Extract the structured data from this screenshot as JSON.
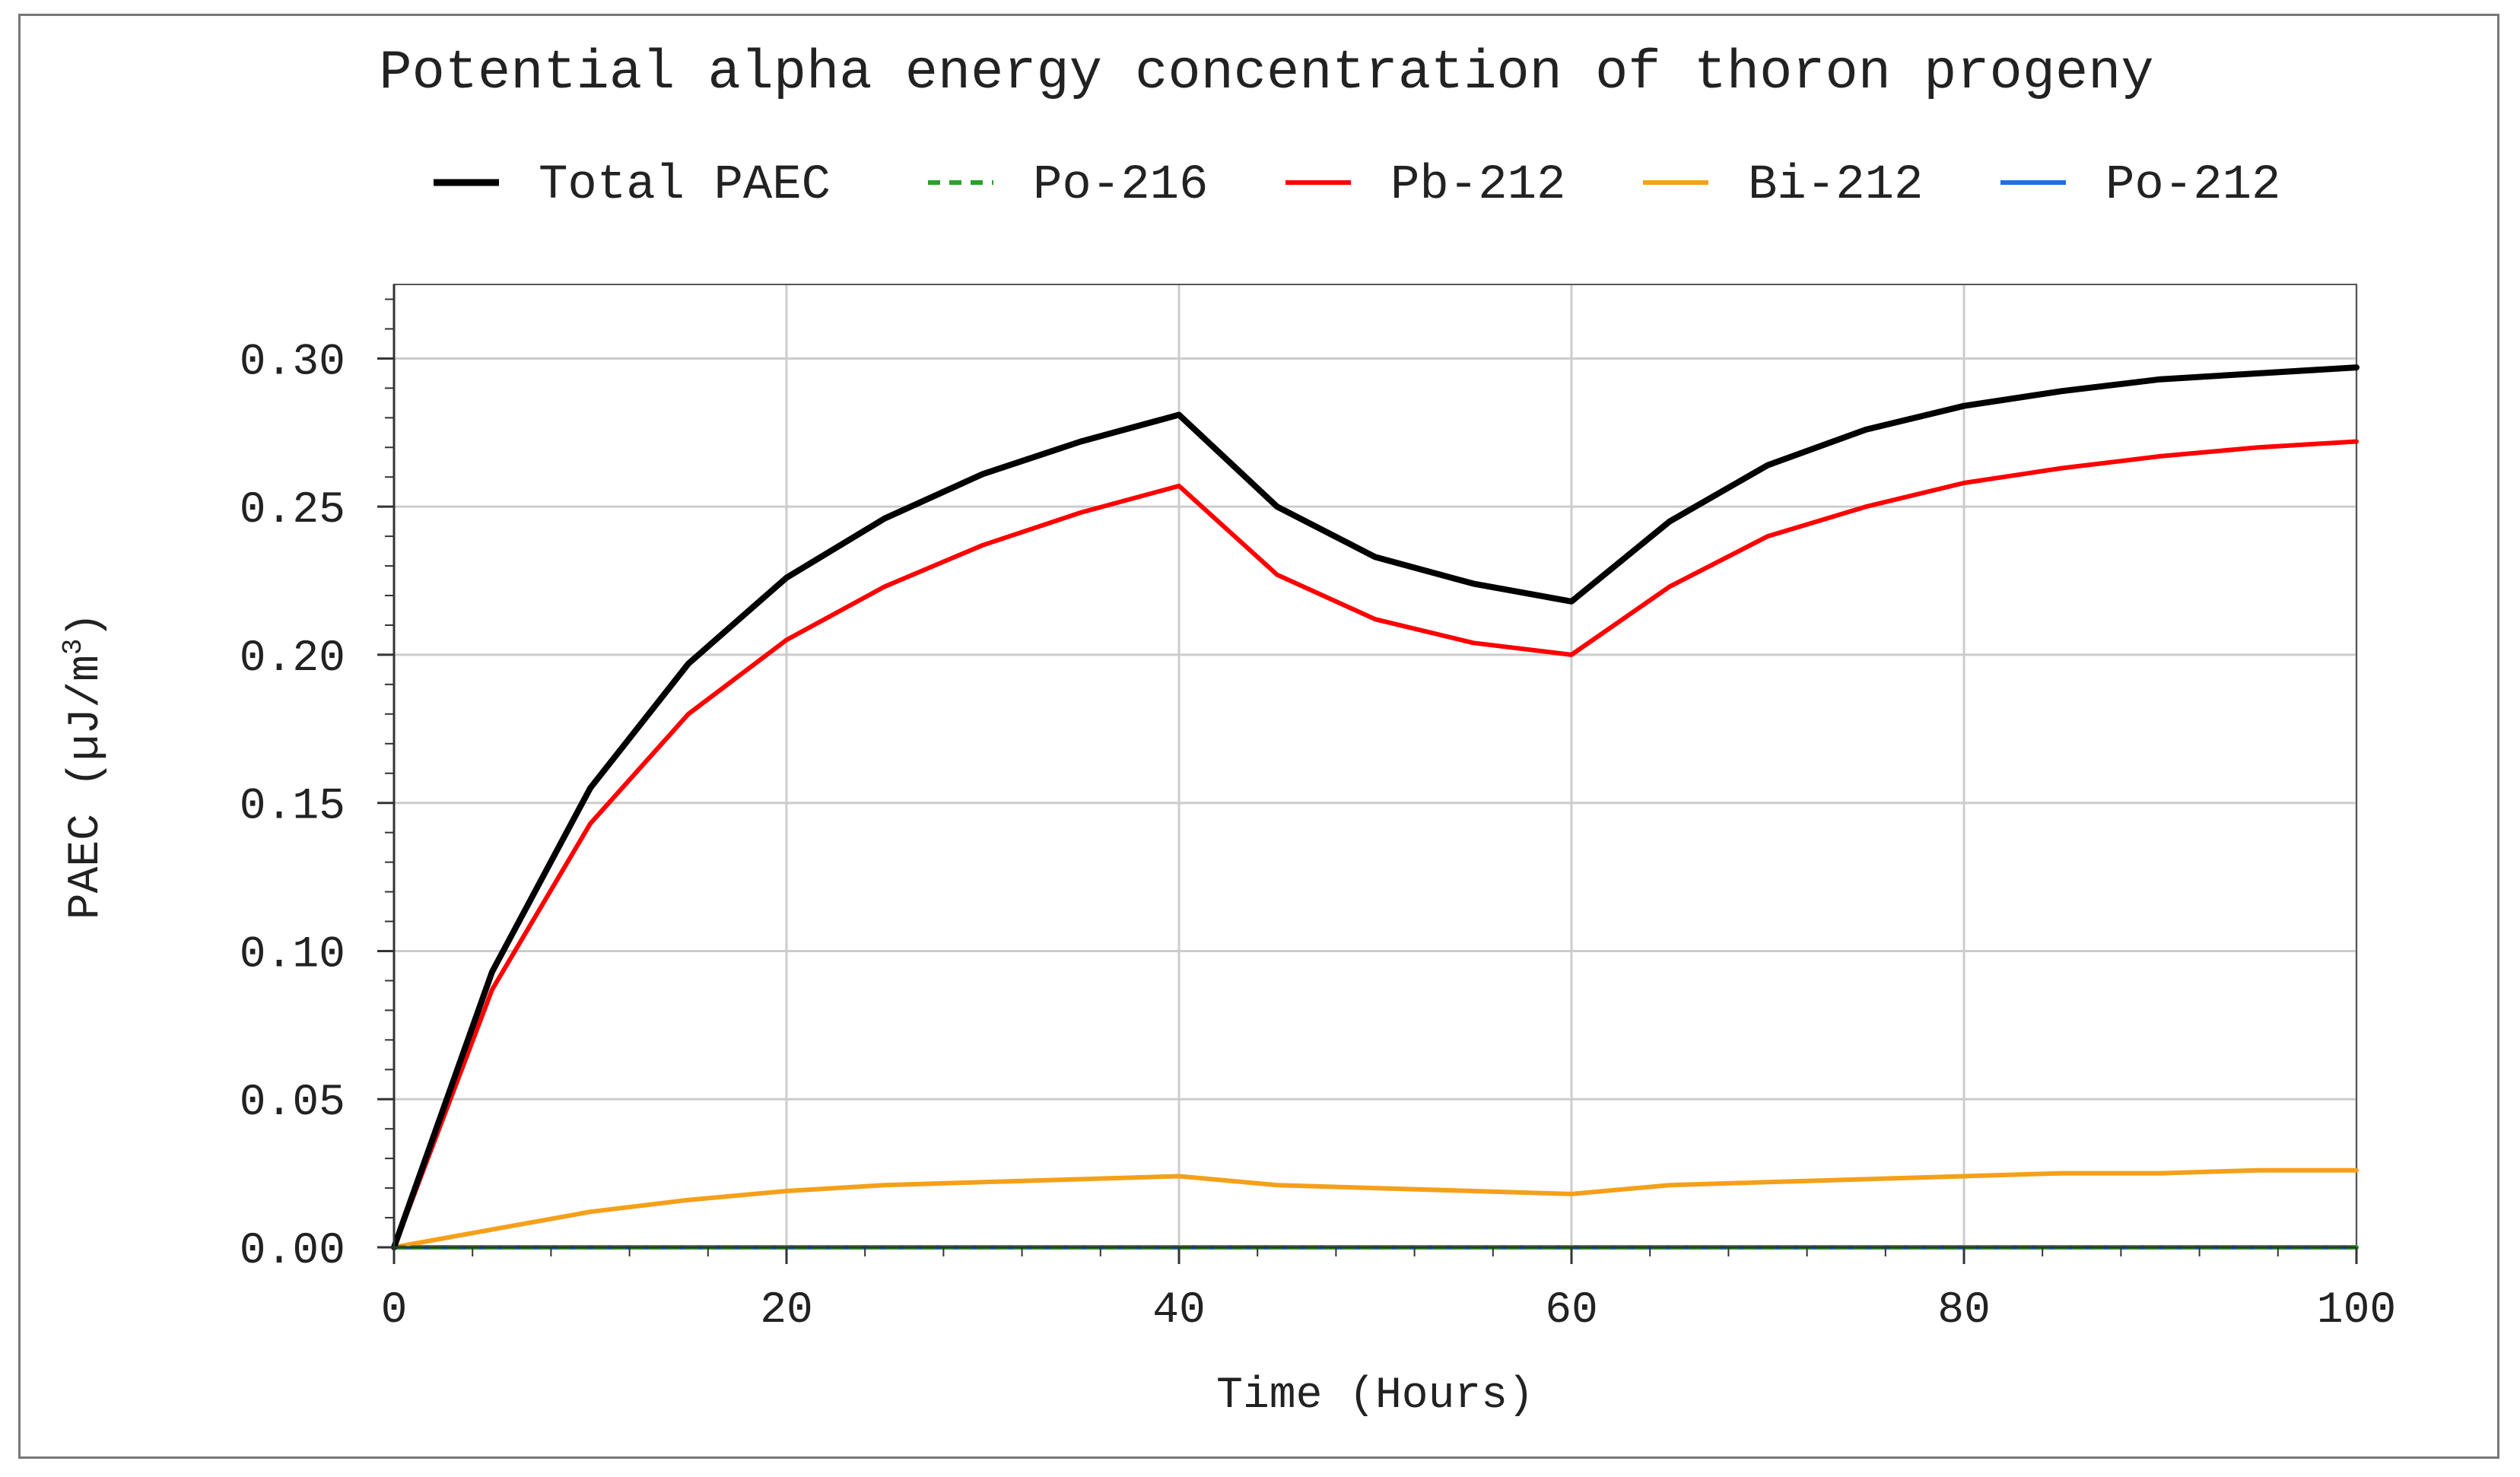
{
  "chart_data": {
    "type": "line",
    "title": "Potential alpha energy concentration of thoron progeny",
    "xlabel": "Time (Hours)",
    "ylabel": {
      "prefix": "PAEC (µJ/m",
      "sup": "3",
      "suffix": ")"
    },
    "xlim": [
      0,
      100
    ],
    "ylim": [
      0,
      0.325
    ],
    "xticks": [
      0,
      20,
      40,
      60,
      80,
      100
    ],
    "xtick_labels": [
      "0",
      "20",
      "40",
      "60",
      "80",
      "100"
    ],
    "yticks": [
      0,
      0.05,
      0.1,
      0.15,
      0.2,
      0.25,
      0.3
    ],
    "ytick_labels": [
      "0.00",
      "0.05",
      "0.10",
      "0.15",
      "0.20",
      "0.25",
      "0.30"
    ],
    "grid": true,
    "legend_position": "top",
    "x": [
      0,
      5,
      10,
      15,
      20,
      25,
      30,
      35,
      40,
      45,
      50,
      55,
      60,
      65,
      70,
      75,
      80,
      85,
      90,
      95,
      100
    ],
    "series": [
      {
        "name": "Total PAEC",
        "color": "#000000",
        "dash": "solid",
        "values": [
          0.0,
          0.093,
          0.155,
          0.197,
          0.226,
          0.246,
          0.261,
          0.272,
          0.281,
          0.25,
          0.233,
          0.224,
          0.218,
          0.245,
          0.264,
          0.276,
          0.284,
          0.289,
          0.293,
          0.295,
          0.297
        ]
      },
      {
        "name": "Po-216",
        "color": "#2ca02c",
        "dash": "dashed",
        "values": [
          0,
          0,
          0,
          0,
          0,
          0,
          0,
          0,
          0,
          0,
          0,
          0,
          0,
          0,
          0,
          0,
          0,
          0,
          0,
          0,
          0
        ]
      },
      {
        "name": "Pb-212",
        "color": "#ff0000",
        "dash": "solid",
        "values": [
          0.0,
          0.087,
          0.143,
          0.18,
          0.205,
          0.223,
          0.237,
          0.248,
          0.257,
          0.227,
          0.212,
          0.204,
          0.2,
          0.223,
          0.24,
          0.25,
          0.258,
          0.263,
          0.267,
          0.27,
          0.272
        ]
      },
      {
        "name": "Bi-212",
        "color": "#f5a01a",
        "dash": "solid",
        "values": [
          0.0,
          0.006,
          0.012,
          0.016,
          0.019,
          0.021,
          0.022,
          0.023,
          0.024,
          0.021,
          0.02,
          0.019,
          0.018,
          0.021,
          0.022,
          0.023,
          0.024,
          0.025,
          0.025,
          0.026,
          0.026
        ]
      },
      {
        "name": "Po-212",
        "color": "#1f6fe5",
        "dash": "solid",
        "values": [
          0,
          0,
          0,
          0,
          0,
          0,
          0,
          0,
          0,
          0,
          0,
          0,
          0,
          0,
          0,
          0,
          0,
          0,
          0,
          0,
          0
        ]
      }
    ]
  }
}
